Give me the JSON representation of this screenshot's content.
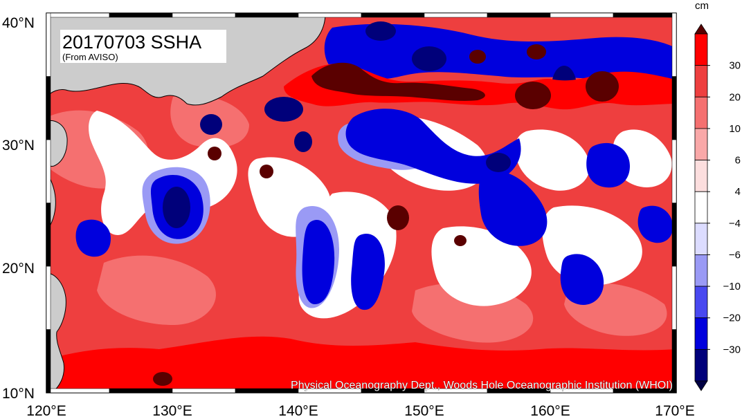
{
  "map": {
    "title": "20170703 SSHA",
    "subtitle": "(From AVISO)",
    "credit": "Physical Oceanography Dept., Woods Hole Oceanographic Institution (WHOI)",
    "lat_labels": [
      "10°N",
      "20°N",
      "30°N",
      "40°N"
    ],
    "lon_labels": [
      "120°E",
      "130°E",
      "140°E",
      "150°E",
      "160°E",
      "170°E"
    ],
    "land_color": "#cccccc",
    "extent": {
      "lon_min": 120,
      "lon_max": 170,
      "lat_min": 10,
      "lat_max": 40
    }
  },
  "colorbar": {
    "unit": "cm",
    "tick_labels": [
      "30",
      "20",
      "10",
      "6",
      "4",
      "−4",
      "−6",
      "−10",
      "−20",
      "−30"
    ],
    "colors_top_to_bottom": [
      "#5a0000",
      "#ff0000",
      "#ee3f3f",
      "#f57070",
      "#f9a8a8",
      "#fcdede",
      "#ffffff",
      "#dcdcff",
      "#9a9af5",
      "#4848f0",
      "#0000dd",
      "#00007a",
      "#000044"
    ]
  }
}
